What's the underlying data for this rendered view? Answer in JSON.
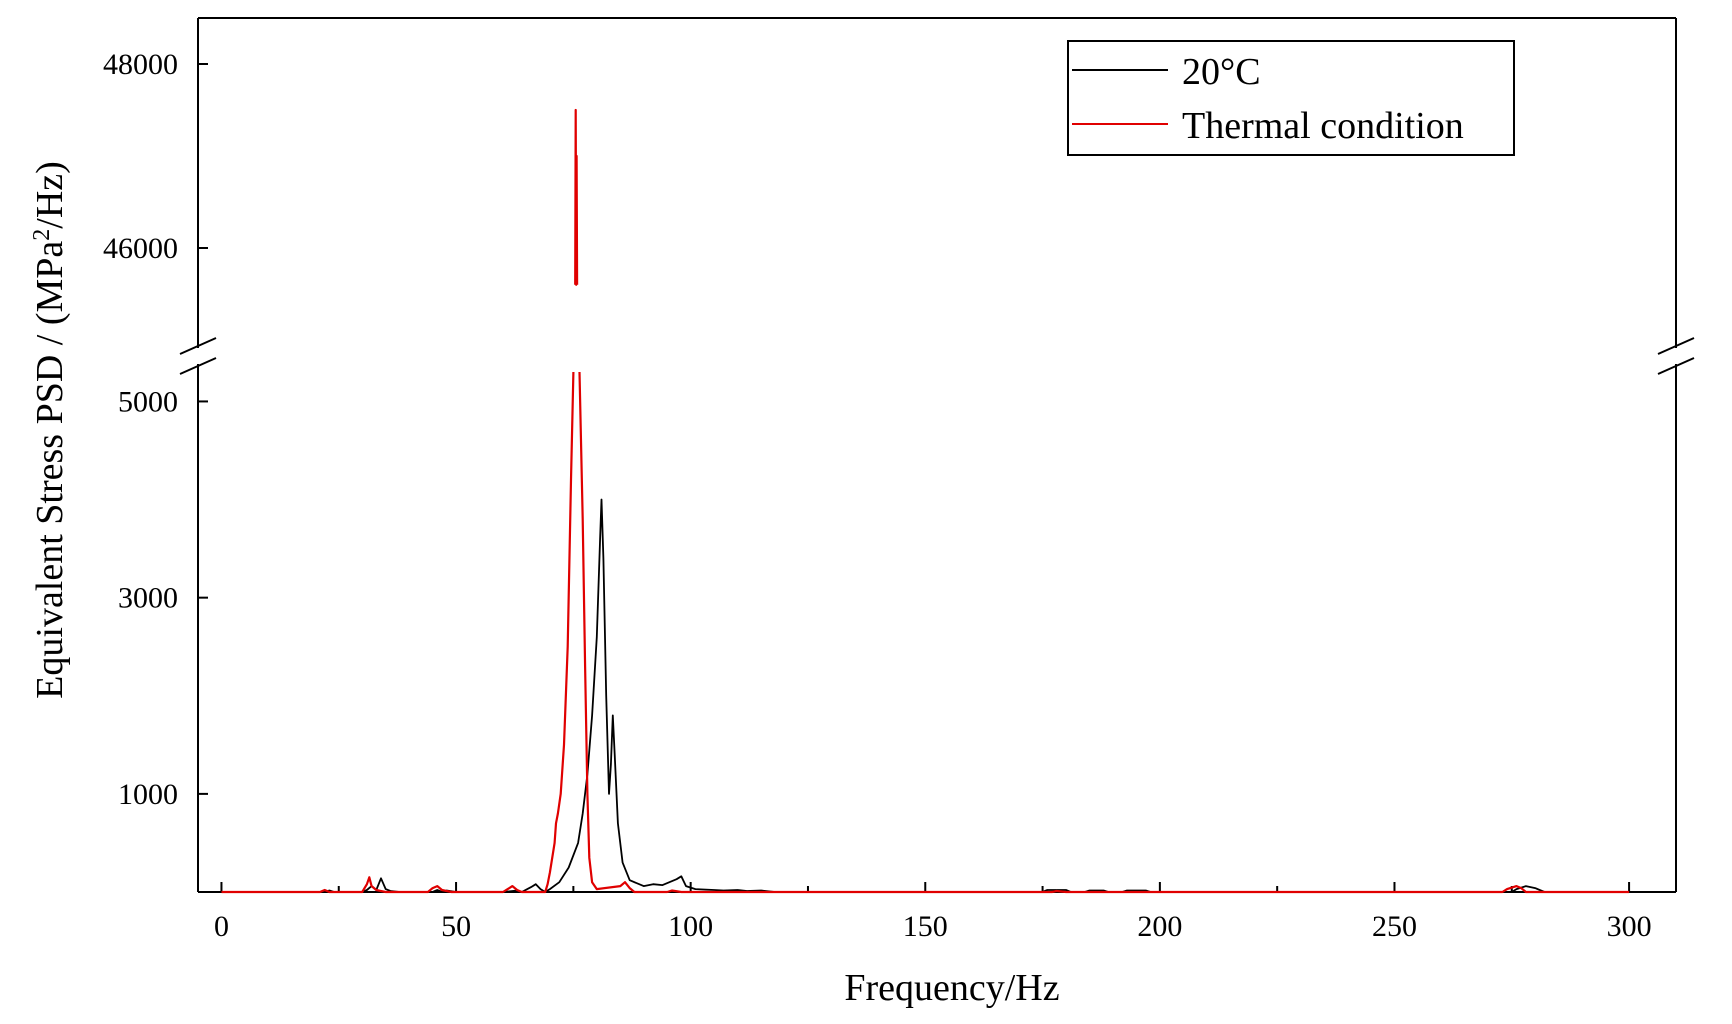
{
  "chart_data": {
    "type": "line",
    "xlabel": "Frequency/Hz",
    "ylabel_main": "Equivalent Stress PSD / (MPa",
    "ylabel_sup": "2",
    "ylabel_end": "/Hz)",
    "x_ticks": [
      "0",
      "50",
      "100",
      "150",
      "200",
      "250",
      "300"
    ],
    "y_ticks_upper": [
      "46000",
      "48000"
    ],
    "y_ticks_lower": [
      "1000",
      "3000",
      "5000"
    ],
    "x_tick_values": [
      0,
      50,
      100,
      150,
      200,
      250,
      300
    ],
    "y_tick_values_upper": [
      46000,
      48000
    ],
    "y_tick_values_lower": [
      1000,
      3000,
      5000
    ],
    "xlim": [
      -5,
      310
    ],
    "ylim_lower": [
      0,
      5300
    ],
    "ylim_upper": [
      45000,
      48500
    ],
    "axis_break": true,
    "grid": false,
    "legend_position": "top-right",
    "series": [
      {
        "name": "20°C",
        "color": "#000000",
        "points": [
          [
            0,
            0
          ],
          [
            22,
            0
          ],
          [
            23,
            15
          ],
          [
            24,
            0
          ],
          [
            30,
            0
          ],
          [
            31,
            20
          ],
          [
            32,
            60
          ],
          [
            33,
            20
          ],
          [
            34,
            140
          ],
          [
            35,
            30
          ],
          [
            36,
            10
          ],
          [
            38,
            0
          ],
          [
            45,
            0
          ],
          [
            46,
            20
          ],
          [
            47,
            0
          ],
          [
            48,
            15
          ],
          [
            50,
            0
          ],
          [
            60,
            0
          ],
          [
            63,
            15
          ],
          [
            64,
            0
          ],
          [
            66,
            50
          ],
          [
            67,
            80
          ],
          [
            68,
            30
          ],
          [
            69,
            0
          ],
          [
            70,
            30
          ],
          [
            72,
            100
          ],
          [
            74,
            250
          ],
          [
            76,
            500
          ],
          [
            77,
            800
          ],
          [
            78,
            1200
          ],
          [
            79,
            1800
          ],
          [
            80,
            2600
          ],
          [
            80.7,
            3600
          ],
          [
            81,
            4000
          ],
          [
            81.4,
            3400
          ],
          [
            82,
            2000
          ],
          [
            82.6,
            1000
          ],
          [
            83,
            1300
          ],
          [
            83.4,
            1800
          ],
          [
            83.8,
            1400
          ],
          [
            84.5,
            700
          ],
          [
            85.5,
            300
          ],
          [
            87,
            120
          ],
          [
            90,
            60
          ],
          [
            92,
            80
          ],
          [
            94,
            70
          ],
          [
            97,
            130
          ],
          [
            98,
            160
          ],
          [
            99,
            60
          ],
          [
            101,
            30
          ],
          [
            105,
            20
          ],
          [
            107,
            15
          ],
          [
            110,
            20
          ],
          [
            112,
            10
          ],
          [
            115,
            15
          ],
          [
            118,
            0
          ],
          [
            175,
            0
          ],
          [
            176,
            20
          ],
          [
            180,
            20
          ],
          [
            181,
            0
          ],
          [
            184,
            0
          ],
          [
            185,
            15
          ],
          [
            188,
            15
          ],
          [
            189,
            0
          ],
          [
            192,
            0
          ],
          [
            193,
            15
          ],
          [
            197,
            15
          ],
          [
            198,
            0
          ],
          [
            275,
            0
          ],
          [
            276,
            30
          ],
          [
            278,
            60
          ],
          [
            280,
            40
          ],
          [
            282,
            0
          ],
          [
            300,
            0
          ]
        ]
      },
      {
        "name": "Thermal condition",
        "color": "#e00000",
        "points": [
          [
            0,
            0
          ],
          [
            21,
            0
          ],
          [
            22,
            20
          ],
          [
            23,
            0
          ],
          [
            30,
            0
          ],
          [
            31,
            80
          ],
          [
            31.5,
            150
          ],
          [
            32,
            60
          ],
          [
            33,
            20
          ],
          [
            35,
            0
          ],
          [
            44,
            0
          ],
          [
            45,
            40
          ],
          [
            46,
            60
          ],
          [
            47,
            20
          ],
          [
            49,
            0
          ],
          [
            60,
            0
          ],
          [
            61,
            30
          ],
          [
            62,
            60
          ],
          [
            63,
            20
          ],
          [
            64,
            0
          ],
          [
            69,
            0
          ],
          [
            69.5,
            80
          ],
          [
            70,
            200
          ],
          [
            71,
            500
          ],
          [
            71.3,
            700
          ],
          [
            71.7,
            800
          ],
          [
            72.3,
            1000
          ],
          [
            73,
            1500
          ],
          [
            73.8,
            2500
          ],
          [
            74.5,
            4200
          ],
          [
            75,
            5300
          ],
          [
            75.4,
            45600
          ],
          [
            75.5,
            47500
          ],
          [
            75.6,
            45600
          ],
          [
            75.7,
            47000
          ],
          [
            75.8,
            45600
          ],
          [
            76.3,
            5300
          ],
          [
            77,
            3800
          ],
          [
            77.5,
            2300
          ],
          [
            78,
            1000
          ],
          [
            78.4,
            350
          ],
          [
            79,
            100
          ],
          [
            80,
            30
          ],
          [
            85,
            60
          ],
          [
            86,
            100
          ],
          [
            87,
            40
          ],
          [
            88,
            0
          ],
          [
            95,
            0
          ],
          [
            96,
            15
          ],
          [
            98,
            0
          ],
          [
            103,
            0
          ],
          [
            177,
            0
          ],
          [
            178,
            10
          ],
          [
            180,
            0
          ],
          [
            190,
            0
          ],
          [
            273,
            0
          ],
          [
            274,
            30
          ],
          [
            276,
            60
          ],
          [
            277,
            40
          ],
          [
            278,
            0
          ],
          [
            300,
            0
          ]
        ]
      }
    ]
  }
}
